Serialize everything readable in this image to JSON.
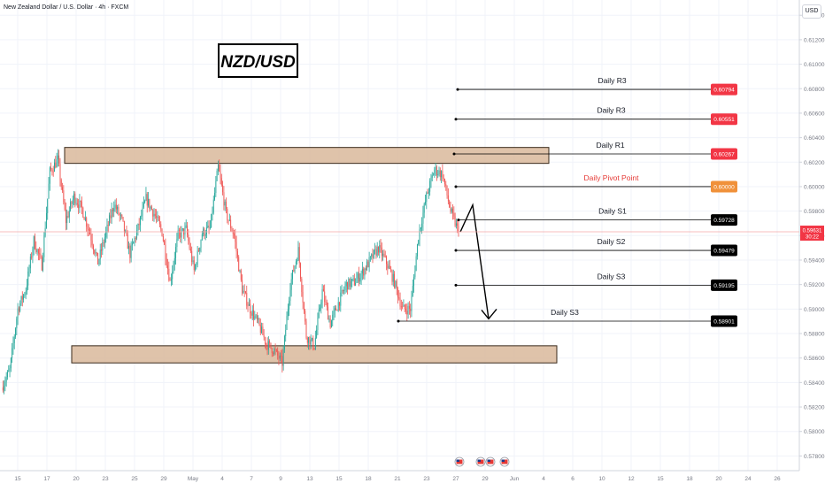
{
  "header": {
    "symbol": "New Zealand Dollar / U.S. Dollar · 4h · FXCM",
    "currency_button": "USD"
  },
  "chart_title": "NZD/USD",
  "colors": {
    "bull": "#26a69a",
    "bear": "#ef5350",
    "zone_fill": "#d9b99b",
    "zone_stroke": "#3a2a1a",
    "pivot_text": "#e53935",
    "pivot_badge": "#f0913a",
    "resistance_badge": "#f23645",
    "support_badge": "#000000",
    "price_badge": "#f23645",
    "price_line": "#f4a6a6",
    "axis_text": "#787b86",
    "grid": "#f0f3fa"
  },
  "chart_data": {
    "type": "candlestick",
    "timeframe": "4h",
    "ylim": [
      0.5768,
      0.6151
    ],
    "y_ticks": [
      "0.61400",
      "0.61200",
      "0.61000",
      "0.60800",
      "0.60600",
      "0.60400",
      "0.60200",
      "0.60000",
      "0.59800",
      "0.59600",
      "0.59400",
      "0.59200",
      "0.59000",
      "0.58800",
      "0.58600",
      "0.58400",
      "0.58200",
      "0.58000",
      "0.57800"
    ],
    "x_ticks": [
      "15",
      "17",
      "20",
      "23",
      "25",
      "29",
      "May",
      "4",
      "7",
      "9",
      "13",
      "15",
      "18",
      "21",
      "23",
      "27",
      "29",
      "Jun",
      "4",
      "6",
      "10",
      "12",
      "15",
      "18",
      "20",
      "24",
      "26"
    ],
    "current_price": {
      "value": "0.59631",
      "countdown": "30:22"
    },
    "levels": [
      {
        "label": "Daily R3",
        "value": "0.60794",
        "kind": "resistance"
      },
      {
        "label": "Daily R3",
        "value": "0.60551",
        "kind": "resistance"
      },
      {
        "label": "Daily R1",
        "value": "0.60267",
        "kind": "resistance"
      },
      {
        "label": "Daily Pivot Point",
        "value": "0.60000",
        "kind": "pivot"
      },
      {
        "label": "Daily S1",
        "value": "0.59728",
        "kind": "support"
      },
      {
        "label": "Daily S2",
        "value": "0.59479",
        "kind": "support"
      },
      {
        "label": "Daily S3",
        "value": "0.59195",
        "kind": "support"
      },
      {
        "label": "Daily S3",
        "value": "0.58901",
        "kind": "support"
      }
    ],
    "zones": [
      {
        "name": "resistance",
        "top": 0.6032,
        "bottom": 0.6019
      },
      {
        "name": "support",
        "top": 0.587,
        "bottom": 0.5856
      }
    ],
    "projection": {
      "from": 0.5985,
      "to": 0.5892,
      "direction": "down"
    },
    "anchors": [
      [
        0.5836,
        0.585
      ],
      [
        0.59,
        0.5916
      ],
      [
        0.5956,
        0.5936
      ],
      [
        0.6012,
        0.6022
      ],
      [
        0.5972,
        0.5992
      ],
      [
        0.5982,
        0.5962
      ],
      [
        0.5938,
        0.5962
      ],
      [
        0.5986,
        0.5972
      ],
      [
        0.5945,
        0.5966
      ],
      [
        0.599,
        0.5978
      ],
      [
        0.5963,
        0.5922
      ],
      [
        0.596,
        0.5965
      ],
      [
        0.5931,
        0.5962
      ],
      [
        0.5966,
        0.6016
      ],
      [
        0.5978,
        0.596
      ],
      [
        0.5916,
        0.59
      ],
      [
        0.5888,
        0.5872
      ],
      [
        0.5866,
        0.5856
      ],
      [
        0.592,
        0.5948
      ],
      [
        0.5878,
        0.587
      ],
      [
        0.5915,
        0.5888
      ],
      [
        0.5905,
        0.592
      ],
      [
        0.5922,
        0.593
      ],
      [
        0.594,
        0.595
      ],
      [
        0.5938,
        0.5922
      ],
      [
        0.59,
        0.59
      ],
      [
        0.596,
        0.5992
      ],
      [
        0.6014,
        0.601
      ],
      [
        0.598,
        0.5963
      ]
    ]
  }
}
